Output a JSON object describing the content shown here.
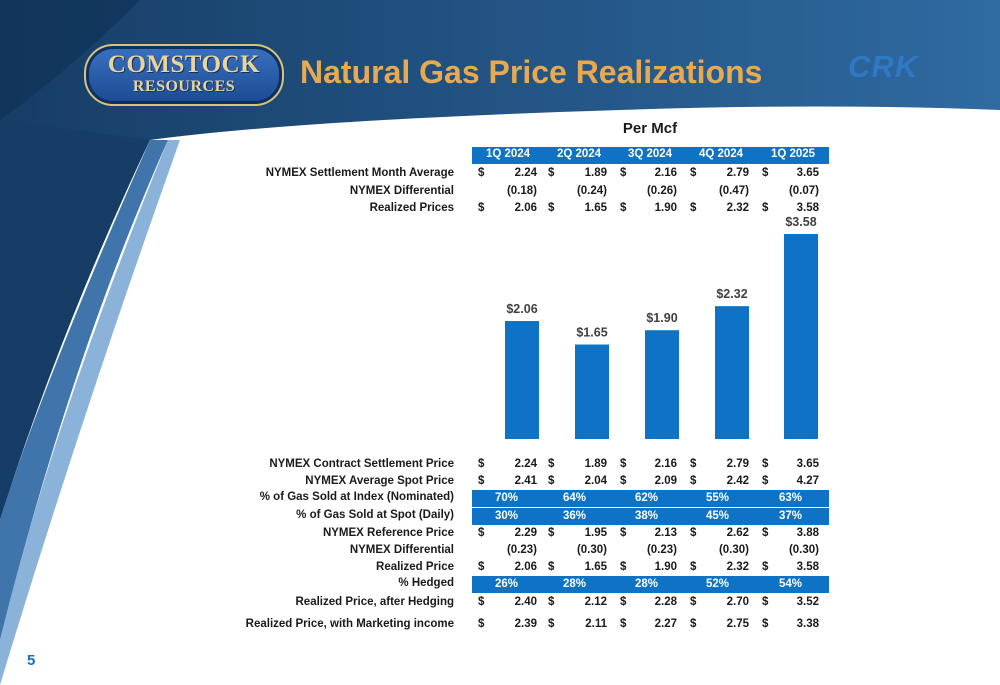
{
  "slide": {
    "title": "Natural Gas Price Realizations",
    "logo_line1": "COMSTOCK",
    "logo_line2": "RESOURCES",
    "ticker": "CRK",
    "page_number": "5",
    "section_title": "Per Mcf"
  },
  "quarters": [
    "1Q 2024",
    "2Q 2024",
    "3Q 2024",
    "4Q 2024",
    "1Q 2025"
  ],
  "top_table": [
    {
      "label": "NYMEX Settlement Month Average",
      "dollar": true,
      "values": [
        "2.24",
        "1.89",
        "2.16",
        "2.79",
        "3.65"
      ]
    },
    {
      "label": "NYMEX Differential",
      "dollar": false,
      "values": [
        "(0.18)",
        "(0.24)",
        "(0.26)",
        "(0.47)",
        "(0.07)"
      ]
    },
    {
      "label": "Realized Prices",
      "dollar": true,
      "values": [
        "2.06",
        "1.65",
        "1.90",
        "2.32",
        "3.58"
      ]
    }
  ],
  "chart_data": {
    "type": "bar",
    "categories": [
      "1Q 2024",
      "2Q 2024",
      "3Q 2024",
      "4Q 2024",
      "1Q 2025"
    ],
    "values": [
      2.06,
      1.65,
      1.9,
      2.32,
      3.58
    ],
    "data_labels": [
      "$2.06",
      "$1.65",
      "$1.90",
      "$2.32",
      "$3.58"
    ],
    "title": "",
    "xlabel": "",
    "ylabel": "",
    "ylim": [
      0,
      3.65
    ],
    "grid": false,
    "bar_color": "#0e73c4"
  },
  "bottom_table": [
    {
      "label": "NYMEX Contract Settlement Price",
      "type": "dollar",
      "values": [
        "2.24",
        "1.89",
        "2.16",
        "2.79",
        "3.65"
      ]
    },
    {
      "label": "NYMEX Average Spot Price",
      "type": "dollar",
      "values": [
        "2.41",
        "2.04",
        "2.09",
        "2.42",
        "4.27"
      ]
    },
    {
      "label": "% of Gas Sold at Index (Nominated)",
      "type": "pct",
      "values": [
        "70%",
        "64%",
        "62%",
        "55%",
        "63%"
      ]
    },
    {
      "label": "% of Gas Sold at Spot (Daily)",
      "type": "pct",
      "values": [
        "30%",
        "36%",
        "38%",
        "45%",
        "37%"
      ]
    },
    {
      "label": "NYMEX Reference Price",
      "type": "dollar",
      "values": [
        "2.29",
        "1.95",
        "2.13",
        "2.62",
        "3.88"
      ]
    },
    {
      "label": "NYMEX Differential",
      "type": "plain",
      "values": [
        "(0.23)",
        "(0.30)",
        "(0.23)",
        "(0.30)",
        "(0.30)"
      ]
    },
    {
      "label": "Realized Price",
      "type": "dollar",
      "values": [
        "2.06",
        "1.65",
        "1.90",
        "2.32",
        "3.58"
      ]
    },
    {
      "label": "% Hedged",
      "type": "pct",
      "values": [
        "26%",
        "28%",
        "28%",
        "52%",
        "54%"
      ]
    },
    {
      "label": "Realized Price, after Hedging",
      "type": "dollar",
      "values": [
        "2.40",
        "2.12",
        "2.28",
        "2.70",
        "3.52"
      ]
    },
    {
      "label": "Realized Price, with Marketing income",
      "type": "dollar",
      "values": [
        "2.39",
        "2.11",
        "2.27",
        "2.75",
        "3.38"
      ]
    }
  ],
  "colors": {
    "accent_blue": "#0e73c4",
    "title_gold": "#e9a94f",
    "header_dark": "#1d4f80"
  }
}
